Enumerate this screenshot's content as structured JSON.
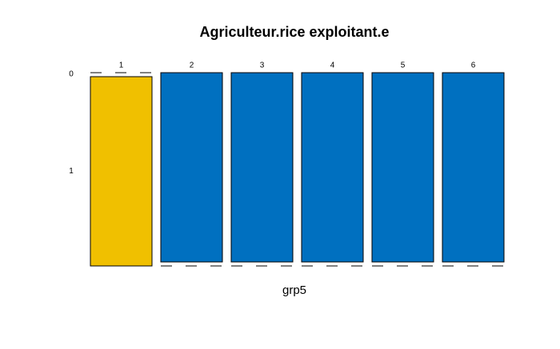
{
  "chart_data": {
    "type": "mosaic",
    "title": "Agriculteur.rice exploitant.e",
    "x_label": "grp5",
    "categories": [
      "1",
      "2",
      "3",
      "4",
      "5",
      "6"
    ],
    "series": [
      {
        "name": "0",
        "color": "#0070c0",
        "values": [
          0,
          1,
          1,
          1,
          1,
          1
        ]
      },
      {
        "name": "1",
        "color": "#f0c000",
        "values": [
          1,
          0,
          0,
          0,
          0,
          0
        ]
      }
    ]
  }
}
